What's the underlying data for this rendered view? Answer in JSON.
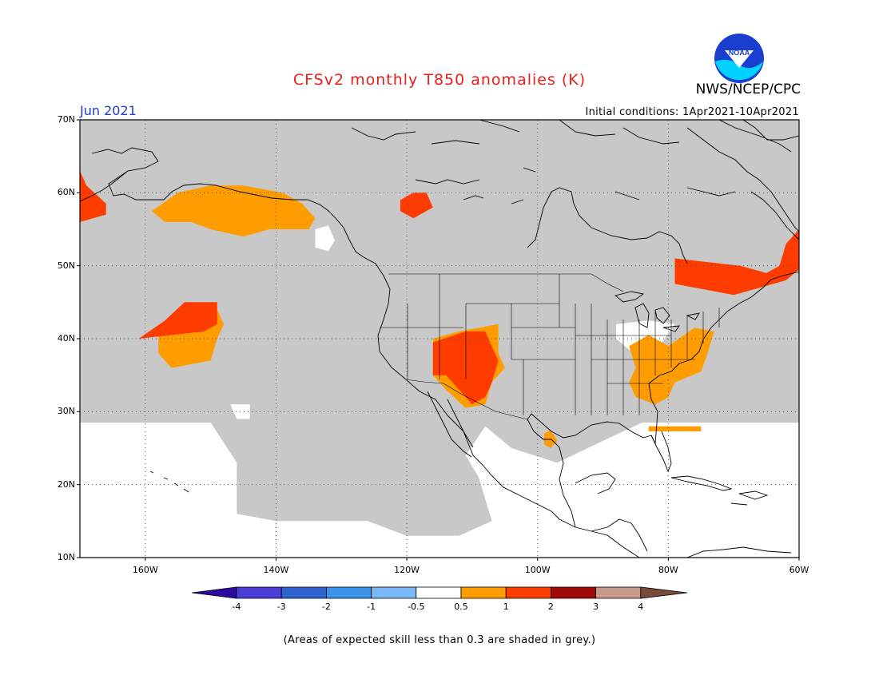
{
  "title": "CFSv2 monthly T850 anomalies (K)",
  "agency": "NWS/NCEP/CPC",
  "logo_text": "NOAA",
  "forecast_month": "Jun 2021",
  "initial_conditions": "Initial conditions: 1Apr2021-10Apr2021",
  "footnote": "(Areas of expected skill less than 0.3 are shaded in grey.)",
  "map": {
    "lon_range": [
      -170,
      -60
    ],
    "lat_range": [
      10,
      70
    ],
    "lat_ticks": [
      {
        "value": 70,
        "label": "70N"
      },
      {
        "value": 60,
        "label": "60N"
      },
      {
        "value": 50,
        "label": "50N"
      },
      {
        "value": 40,
        "label": "40N"
      },
      {
        "value": 30,
        "label": "30N"
      },
      {
        "value": 20,
        "label": "20N"
      },
      {
        "value": 10,
        "label": "10N"
      }
    ],
    "lon_ticks": [
      {
        "value": -160,
        "label": "160W"
      },
      {
        "value": -140,
        "label": "140W"
      },
      {
        "value": -120,
        "label": "120W"
      },
      {
        "value": -100,
        "label": "100W"
      },
      {
        "value": -80,
        "label": "80W"
      },
      {
        "value": -60,
        "label": "60W"
      }
    ],
    "colors": {
      "grey": "#c8c8c8",
      "white": "#ffffff",
      "cat_0_5_1": "#ff9c00",
      "cat_1_2": "#ff3c00",
      "coast": "#000000"
    },
    "anomaly_regions": [
      {
        "name": "gulf-of-alaska",
        "class": "0.5 to 1",
        "color": "#ff9c00",
        "points": [
          [
            -159,
            57.5
          ],
          [
            -155,
            60
          ],
          [
            -150,
            61
          ],
          [
            -145,
            61
          ],
          [
            -139,
            60
          ],
          [
            -136,
            58.5
          ],
          [
            -134,
            56.5
          ],
          [
            -135,
            55
          ],
          [
            -141,
            55
          ],
          [
            -145,
            54
          ],
          [
            -150,
            55
          ],
          [
            -153,
            56
          ],
          [
            -157,
            56
          ]
        ]
      },
      {
        "name": "bering-west",
        "class": "1 to 2",
        "color": "#ff3c00",
        "points": [
          [
            -170,
            63
          ],
          [
            -169,
            61
          ],
          [
            -166,
            58.5
          ],
          [
            -166,
            57
          ],
          [
            -170,
            56
          ]
        ]
      },
      {
        "name": "central-pacific-warm",
        "class": "0.5 to 1",
        "color": "#ff9c00",
        "points": [
          [
            -158,
            41
          ],
          [
            -155,
            44
          ],
          [
            -149,
            44
          ],
          [
            -148,
            42
          ],
          [
            -149,
            40
          ],
          [
            -150,
            37
          ],
          [
            -156,
            36
          ],
          [
            -158,
            38
          ]
        ]
      },
      {
        "name": "central-pacific-hot",
        "class": "1 to 2",
        "color": "#ff3c00",
        "points": [
          [
            -161,
            40
          ],
          [
            -157,
            42.5
          ],
          [
            -154,
            45
          ],
          [
            -149,
            45
          ],
          [
            -149,
            42
          ],
          [
            -151,
            41
          ],
          [
            -156,
            40.5
          ]
        ]
      },
      {
        "name": "hudson-bay-west",
        "class": "1 to 2",
        "color": "#ff3c00",
        "points": [
          [
            -121,
            59
          ],
          [
            -119,
            60
          ],
          [
            -117,
            60
          ],
          [
            -116,
            58
          ],
          [
            -119,
            56.5
          ],
          [
            -121,
            57.5
          ]
        ]
      },
      {
        "name": "southwest-warm",
        "class": "0.5 to 1",
        "color": "#ff9c00",
        "points": [
          [
            -116,
            40
          ],
          [
            -112,
            41
          ],
          [
            -106,
            42
          ],
          [
            -106,
            38
          ],
          [
            -105,
            36
          ],
          [
            -107,
            34
          ],
          [
            -108,
            31
          ],
          [
            -111,
            30.5
          ],
          [
            -114,
            33
          ],
          [
            -116,
            35
          ]
        ]
      },
      {
        "name": "southwest-hot",
        "class": "1 to 2",
        "color": "#ff3c00",
        "points": [
          [
            -116,
            39.5
          ],
          [
            -111,
            41
          ],
          [
            -108,
            41
          ],
          [
            -106,
            37
          ],
          [
            -107,
            34
          ],
          [
            -108,
            32
          ],
          [
            -110,
            31
          ],
          [
            -111,
            32
          ],
          [
            -113,
            34
          ],
          [
            -114,
            35
          ],
          [
            -116,
            35
          ]
        ]
      },
      {
        "name": "texas-coast",
        "class": "0.5 to 1",
        "color": "#ff9c00",
        "points": [
          [
            -99,
            27
          ],
          [
            -98,
            27.5
          ],
          [
            -97,
            26
          ],
          [
            -98,
            25
          ],
          [
            -99,
            25.5
          ]
        ]
      },
      {
        "name": "southeast-warm",
        "class": "0.5 to 1",
        "color": "#ff9c00",
        "points": [
          [
            -86,
            39
          ],
          [
            -83,
            40.5
          ],
          [
            -80,
            39
          ],
          [
            -76,
            41.5
          ],
          [
            -73,
            41
          ],
          [
            -74,
            38
          ],
          [
            -75,
            35.5
          ],
          [
            -79,
            34
          ],
          [
            -80,
            32
          ],
          [
            -82,
            31
          ],
          [
            -85,
            32
          ],
          [
            -86,
            34
          ],
          [
            -85,
            36
          ]
        ]
      },
      {
        "name": "florida-band",
        "class": "0.5 to 1",
        "color": "#ff9c00",
        "points": [
          [
            -83,
            28
          ],
          [
            -75,
            28
          ],
          [
            -75,
            27.3
          ],
          [
            -83,
            27.3
          ]
        ]
      },
      {
        "name": "quebec-hot",
        "class": "1 to 2",
        "color": "#ff3c00",
        "points": [
          [
            -79,
            51
          ],
          [
            -69,
            50
          ],
          [
            -65,
            49
          ],
          [
            -63,
            50
          ],
          [
            -62,
            53
          ],
          [
            -60,
            55
          ],
          [
            -60,
            49.5
          ],
          [
            -62,
            48
          ],
          [
            -66,
            47
          ],
          [
            -70,
            46
          ],
          [
            -73,
            46.5
          ],
          [
            -79,
            47.5
          ]
        ]
      }
    ],
    "white_regions": [
      {
        "name": "tropics-south",
        "points": [
          [
            -170,
            28.5
          ],
          [
            -150,
            28.5
          ],
          [
            -146,
            23
          ],
          [
            -146,
            16
          ],
          [
            -140,
            15
          ],
          [
            -126,
            15
          ],
          [
            -120,
            13
          ],
          [
            -112,
            13
          ],
          [
            -107,
            15
          ],
          [
            -109,
            21
          ],
          [
            -111,
            24
          ],
          [
            -108,
            28
          ],
          [
            -104,
            25
          ],
          [
            -97,
            23
          ],
          [
            -90,
            26
          ],
          [
            -84,
            28.5
          ],
          [
            -60,
            28.5
          ],
          [
            -60,
            10
          ],
          [
            -170,
            10
          ]
        ]
      },
      {
        "name": "bc-coast",
        "points": [
          [
            -134,
            55
          ],
          [
            -132,
            55.5
          ],
          [
            -131,
            53.5
          ],
          [
            -132,
            52
          ],
          [
            -134,
            52.5
          ]
        ]
      },
      {
        "name": "ohio-valley",
        "points": [
          [
            -88,
            42
          ],
          [
            -83,
            42.5
          ],
          [
            -79,
            42
          ],
          [
            -81,
            39.5
          ],
          [
            -84,
            38
          ],
          [
            -86,
            38.5
          ],
          [
            -88,
            40
          ]
        ]
      },
      {
        "name": "pacific-patch",
        "points": [
          [
            -147,
            31
          ],
          [
            -146,
            29
          ],
          [
            -144,
            29
          ],
          [
            -144,
            31
          ]
        ]
      }
    ]
  },
  "colorbar": {
    "colors": [
      "#2a0aa0",
      "#4a3ed6",
      "#2f64d0",
      "#3c93ea",
      "#7ab8f5",
      "#ffffff",
      "#ff9c00",
      "#ff3c00",
      "#a00a0a",
      "#c89a8a",
      "#7a4a3a"
    ],
    "labels": [
      "-4",
      "-3",
      "-2",
      "-1",
      "-0.5",
      "0.5",
      "1",
      "2",
      "3",
      "4"
    ]
  }
}
